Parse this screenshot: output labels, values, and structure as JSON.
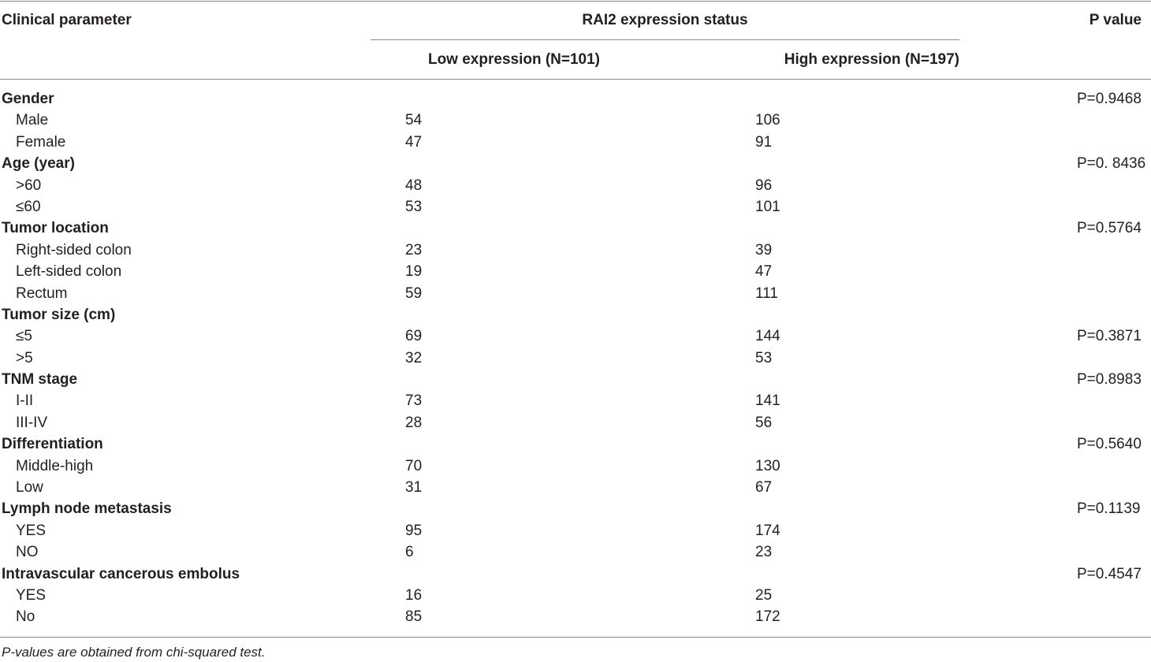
{
  "header": {
    "param": "Clinical parameter",
    "status": "RAI2 expression status",
    "pvalue": "P value",
    "low": "Low expression (N=101)",
    "high": "High expression (N=197)"
  },
  "rows": [
    {
      "type": "group",
      "label": "Gender",
      "low": "",
      "high": "",
      "p": "P=0.9468"
    },
    {
      "type": "sub",
      "label": "Male",
      "low": "54",
      "high": "106",
      "p": ""
    },
    {
      "type": "sub",
      "label": "Female",
      "low": "47",
      "high": "91",
      "p": ""
    },
    {
      "type": "group",
      "label": "Age (year)",
      "low": "",
      "high": "",
      "p": "P=0. 8436"
    },
    {
      "type": "sub",
      "label": ">60",
      "low": "48",
      "high": "96",
      "p": ""
    },
    {
      "type": "sub",
      "label": "≤60",
      "low": "53",
      "high": "101",
      "p": ""
    },
    {
      "type": "group",
      "label": "Tumor location",
      "low": "",
      "high": "",
      "p": "P=0.5764"
    },
    {
      "type": "sub",
      "label": "Right-sided colon",
      "low": "23",
      "high": "39",
      "p": ""
    },
    {
      "type": "sub",
      "label": "Left-sided colon",
      "low": "19",
      "high": "47",
      "p": ""
    },
    {
      "type": "sub",
      "label": "Rectum",
      "low": "59",
      "high": "111",
      "p": ""
    },
    {
      "type": "group",
      "label": "Tumor size (cm)",
      "low": "",
      "high": "",
      "p": ""
    },
    {
      "type": "sub",
      "label": "≤5",
      "low": "69",
      "high": "144",
      "p": "P=0.3871"
    },
    {
      "type": "sub",
      "label": ">5",
      "low": "32",
      "high": "53",
      "p": ""
    },
    {
      "type": "group",
      "label": "TNM stage",
      "low": "",
      "high": "",
      "p": "P=0.8983"
    },
    {
      "type": "sub",
      "label": "I-II",
      "low": "73",
      "high": "141",
      "p": ""
    },
    {
      "type": "sub",
      "label": "III-IV",
      "low": "28",
      "high": "56",
      "p": ""
    },
    {
      "type": "group",
      "label": "Differentiation",
      "low": "",
      "high": "",
      "p": "P=0.5640"
    },
    {
      "type": "sub",
      "label": "Middle-high",
      "low": "70",
      "high": "130",
      "p": ""
    },
    {
      "type": "sub",
      "label": "Low",
      "low": "31",
      "high": "67",
      "p": ""
    },
    {
      "type": "group",
      "label": "Lymph node metastasis",
      "low": "",
      "high": "",
      "p": "P=0.1139"
    },
    {
      "type": "sub",
      "label": "YES",
      "low": "95",
      "high": "174",
      "p": ""
    },
    {
      "type": "sub",
      "label": "NO",
      "low": "6",
      "high": "23",
      "p": ""
    },
    {
      "type": "group",
      "label": "Intravascular cancerous embolus",
      "low": "",
      "high": "",
      "p": "P=0.4547"
    },
    {
      "type": "sub",
      "label": "YES",
      "low": "16",
      "high": "25",
      "p": ""
    },
    {
      "type": "sub",
      "label": "No",
      "low": "85",
      "high": "172",
      "p": ""
    }
  ],
  "footnote": "P-values are obtained from chi-squared test."
}
